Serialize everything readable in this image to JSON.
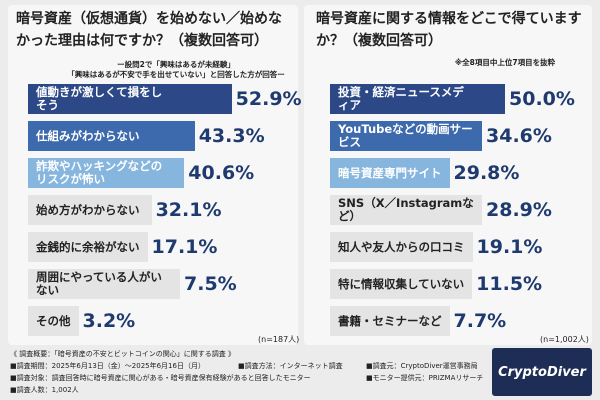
{
  "chart_data": [
    {
      "type": "bar",
      "orientation": "horizontal",
      "title": "暗号資産（仮想通貨）を始めない／始めなかった理由は何ですか？（複数回答可）",
      "subtitle": "ー設問2で「興味はあるが未経験」\n「興味はあるが不安で手を出せていない」と回答した方が回答ー",
      "note": "(n=187人)",
      "categories": [
        "値動きが激しくて損をしそう",
        "仕組みがわからない",
        "詐欺やハッキングなどのリスクが怖い",
        "始め方がわからない",
        "金銭的に余裕がない",
        "周囲にやっている人がいない",
        "その他"
      ],
      "values": [
        52.9,
        43.3,
        40.6,
        32.1,
        17.1,
        7.5,
        3.2
      ],
      "value_labels": [
        "52.9%",
        "43.3%",
        "40.6%",
        "32.1%",
        "17.1%",
        "7.5%",
        "3.2%"
      ],
      "colors": [
        "#2c4886",
        "#3d69ad",
        "#86b5de",
        "#e4e4e4",
        "#e4e4e4",
        "#e4e4e4",
        "#e4e4e4"
      ]
    },
    {
      "type": "bar",
      "orientation": "horizontal",
      "title": "暗号資産に関する情報をどこで得ていますか？（複数回答可）",
      "subtitle": "※全8項目中上位7項目を抜粋",
      "note": "(n=1,002人)",
      "categories": [
        "投資・経済ニュースメディア",
        "YouTubeなどの動画サービス",
        "暗号資産専門サイト",
        "SNS（X／Instagramなど）",
        "知人や友人からの口コミ",
        "特に情報収集していない",
        "書籍・セミナーなど"
      ],
      "values": [
        50.0,
        34.6,
        29.8,
        28.9,
        19.1,
        11.5,
        7.7
      ],
      "value_labels": [
        "50.0%",
        "34.6%",
        "29.8%",
        "28.9%",
        "19.1%",
        "11.5%",
        "7.7%"
      ],
      "colors": [
        "#2c4886",
        "#3d69ad",
        "#86b5de",
        "#e4e4e4",
        "#e4e4e4",
        "#e4e4e4",
        "#e4e4e4"
      ]
    }
  ],
  "footer": {
    "heading": "《 調査概要：「暗号資産の不安とビットコインの関心」に関する調査 》",
    "period": "■調査期間：2025年6月13日（金）〜2025年6月16日（月）",
    "method": "■調査方法：インターネット調査",
    "source": "■調査元：CryptoDiver運営事務局",
    "target": "■調査対象：調査回答時に暗号資産に関心がある・暗号資産保有経験があると回答したモニター",
    "monitor": "■モニター提供元：PRIZMAリサーチ",
    "count": "■調査人数：1,002人",
    "logo": "CryptoDiver"
  }
}
